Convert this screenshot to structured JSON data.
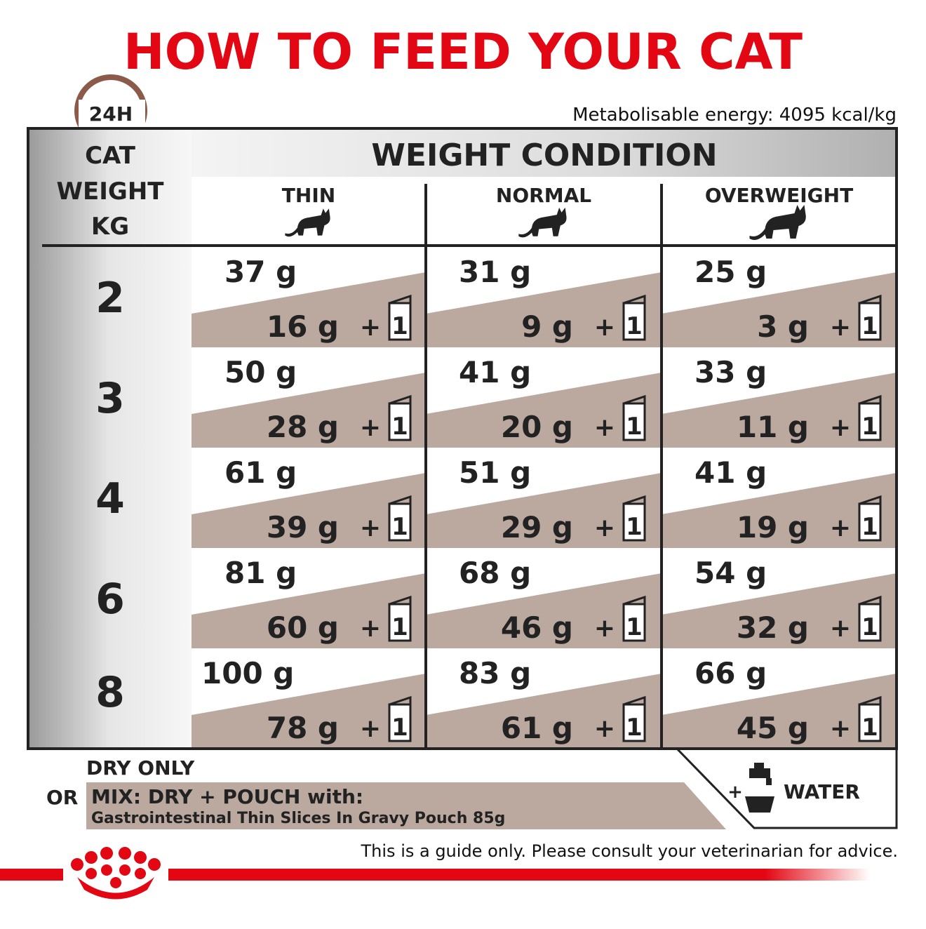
{
  "header": {
    "title": "HOW TO FEED YOUR CAT",
    "badge": "24H",
    "energy": "Metabolisable energy: 4095 kcal/kg"
  },
  "table": {
    "corner": [
      "CAT",
      "WEIGHT",
      "KG"
    ],
    "group": "WEIGHT CONDITION",
    "columns": [
      "THIN",
      "NORMAL",
      "OVERWEIGHT"
    ],
    "plus": "+",
    "rows": [
      {
        "weight": "2",
        "cells": [
          {
            "dry": "37 g",
            "mix": "16 g",
            "pouches": "1"
          },
          {
            "dry": "31 g",
            "mix": "9 g",
            "pouches": "1"
          },
          {
            "dry": "25 g",
            "mix": "3 g",
            "pouches": "1"
          }
        ]
      },
      {
        "weight": "3",
        "cells": [
          {
            "dry": "50 g",
            "mix": "28 g",
            "pouches": "1"
          },
          {
            "dry": "41 g",
            "mix": "20 g",
            "pouches": "1"
          },
          {
            "dry": "33 g",
            "mix": "11 g",
            "pouches": "1"
          }
        ]
      },
      {
        "weight": "4",
        "cells": [
          {
            "dry": "61 g",
            "mix": "39 g",
            "pouches": "1"
          },
          {
            "dry": "51 g",
            "mix": "29 g",
            "pouches": "1"
          },
          {
            "dry": "41 g",
            "mix": "19 g",
            "pouches": "1"
          }
        ]
      },
      {
        "weight": "6",
        "cells": [
          {
            "dry": "81 g",
            "mix": "60 g",
            "pouches": "1"
          },
          {
            "dry": "68 g",
            "mix": "46 g",
            "pouches": "1"
          },
          {
            "dry": "54 g",
            "mix": "32 g",
            "pouches": "1"
          }
        ]
      },
      {
        "weight": "8",
        "cells": [
          {
            "dry": "100 g",
            "mix": "78 g",
            "pouches": "1"
          },
          {
            "dry": "83 g",
            "mix": "61 g",
            "pouches": "1"
          },
          {
            "dry": "66 g",
            "mix": "45 g",
            "pouches": "1"
          }
        ]
      }
    ]
  },
  "footer": {
    "dry_only": "DRY ONLY",
    "or": "OR",
    "mix": "MIX: DRY + POUCH with:",
    "pouch_name": "Gastrointestinal Thin Slices In Gravy Pouch 85g",
    "water_plus": "+",
    "water": "WATER",
    "disclaimer": "This is a guide only. Please consult your veterinarian for advice."
  }
}
